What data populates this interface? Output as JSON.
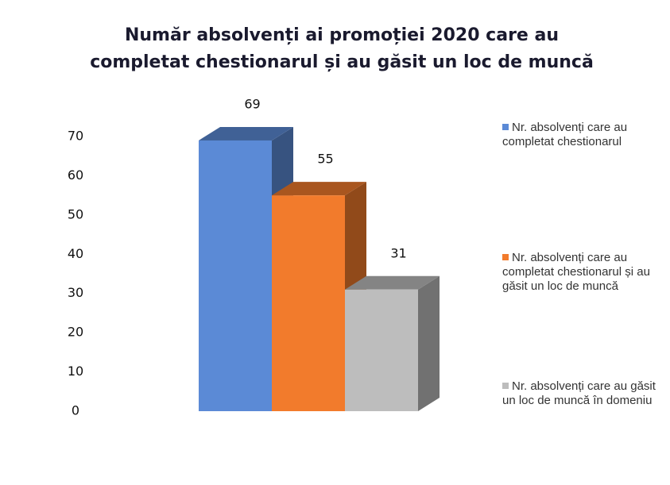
{
  "chart_data": {
    "type": "bar3d",
    "title": "Număr absolvenți ai promoției 2020 care au completat chestionarul și au găsit un loc de muncă",
    "series": [
      {
        "name": "Nr. absolvenți care au completat chestionarul",
        "color": "#5b8ad6",
        "values": [
          69
        ]
      },
      {
        "name": "Nr. absolvenți care au completat chestionarul și au găsit un loc de muncă",
        "color": "#f27b2c",
        "values": [
          55
        ]
      },
      {
        "name": "Nr. absolvenți care au găsit un loc de muncă în domeniu",
        "color": "#bdbdbd",
        "values": [
          31
        ]
      }
    ],
    "ylim": [
      0,
      70
    ],
    "yticks": [
      0,
      10,
      20,
      30,
      40,
      50,
      60,
      70
    ],
    "grid": false,
    "legend": "right"
  }
}
